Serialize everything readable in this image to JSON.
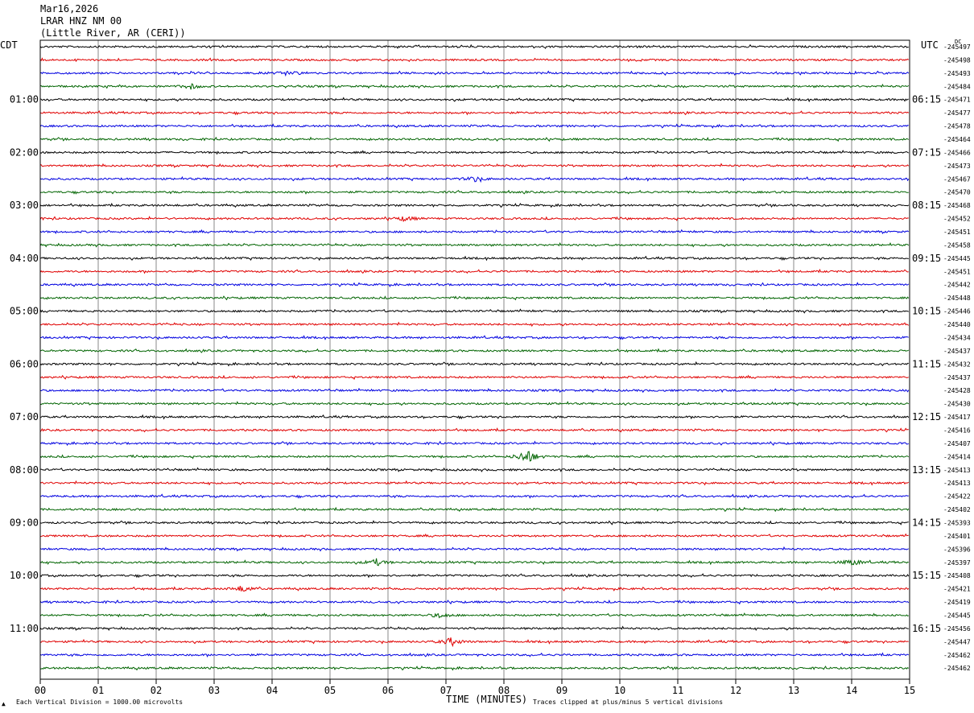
{
  "header": {
    "date": "Mar16,2026",
    "station": "LRAR HNZ NM 00",
    "location": "(Little River, AR (CERI))"
  },
  "left_tz": "CDT",
  "right_tz": "UTC",
  "dc_label": "DC",
  "footer": {
    "scale_marker": "▲",
    "scale_note": "Each Vertical Division = 1000.00 microvolts",
    "xlabel": "TIME (MINUTES)",
    "clip_note": "Traces clipped at plus/minus 5 vertical divisions"
  },
  "colors": {
    "black": "#000000",
    "red": "#e00000",
    "blue": "#0000e0",
    "green": "#006400",
    "grid": "#888888"
  },
  "chart_data": {
    "type": "line",
    "title": "Mar16,2026",
    "xlabel": "TIME (MINUTES)",
    "xlim": [
      0,
      15
    ],
    "x_ticks": [
      "00",
      "01",
      "02",
      "03",
      "04",
      "05",
      "06",
      "07",
      "08",
      "09",
      "10",
      "11",
      "12",
      "13",
      "14",
      "15"
    ],
    "left_hour_labels": [
      "01:00",
      "02:00",
      "03:00",
      "04:00",
      "05:00",
      "06:00",
      "07:00",
      "08:00",
      "09:00",
      "10:00",
      "11:00"
    ],
    "right_hour_labels": [
      "06:15",
      "07:15",
      "08:15",
      "09:15",
      "10:15",
      "11:15",
      "12:15",
      "13:15",
      "14:15",
      "15:15",
      "16:15"
    ],
    "trace_color_cycle": [
      "black",
      "red",
      "blue",
      "green"
    ],
    "trace_offsets": [
      245497,
      245498,
      245493,
      245484,
      245471,
      245477,
      245478,
      245464,
      245466,
      245473,
      245467,
      245470,
      245468,
      245452,
      245451,
      245458,
      245445,
      245451,
      245442,
      245448,
      245446,
      245440,
      245434,
      245437,
      245432,
      245437,
      245428,
      245430,
      245417,
      245416,
      245407,
      245414,
      245413,
      245413,
      245422,
      245402,
      245393,
      245401,
      245396,
      245397,
      245408,
      245421,
      245419,
      245445,
      245456,
      245447,
      245462,
      245462
    ],
    "events": [
      {
        "trace": 3,
        "minute": 2.6,
        "amp": 3
      },
      {
        "trace": 2,
        "minute": 4.3,
        "amp": 3
      },
      {
        "trace": 10,
        "minute": 7.5,
        "amp": 3
      },
      {
        "trace": 13,
        "minute": 6.3,
        "amp": 3
      },
      {
        "trace": 31,
        "minute": 8.4,
        "amp": 10
      },
      {
        "trace": 39,
        "minute": 5.8,
        "amp": 4
      },
      {
        "trace": 39,
        "minute": 14.0,
        "amp": 4
      },
      {
        "trace": 41,
        "minute": 3.5,
        "amp": 4
      },
      {
        "trace": 43,
        "minute": 6.9,
        "amp": 3
      },
      {
        "trace": 45,
        "minute": 7.1,
        "amp": 5
      }
    ]
  }
}
